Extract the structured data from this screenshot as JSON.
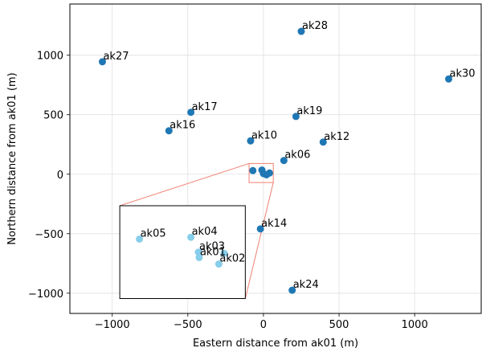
{
  "chart_data": {
    "type": "scatter",
    "xlabel": "Eastern distance from ak01 (m)",
    "ylabel": "Northern distance from ak01 (m)",
    "xlim": [
      -1280,
      1440
    ],
    "ylim": [
      -1170,
      1430
    ],
    "xticks": [
      -1000,
      -500,
      0,
      500,
      1000
    ],
    "yticks": [
      -1000,
      -500,
      0,
      500,
      1000
    ],
    "xtick_labels": [
      "−1000",
      "−500",
      "0",
      "500",
      "1000"
    ],
    "ytick_labels": [
      "−1000",
      "−500",
      "0",
      "500",
      "1000"
    ],
    "grid": true,
    "point_color": "#1f77b4",
    "points": [
      {
        "name": "ak28",
        "x": 250,
        "y": 1200
      },
      {
        "name": "ak27",
        "x": -1065,
        "y": 945
      },
      {
        "name": "ak30",
        "x": 1225,
        "y": 800
      },
      {
        "name": "ak17",
        "x": -480,
        "y": 520
      },
      {
        "name": "ak19",
        "x": 215,
        "y": 485
      },
      {
        "name": "ak16",
        "x": -625,
        "y": 365
      },
      {
        "name": "ak10",
        "x": -85,
        "y": 280
      },
      {
        "name": "ak12",
        "x": 395,
        "y": 270
      },
      {
        "name": "ak06",
        "x": 135,
        "y": 115
      },
      {
        "name": "ak14",
        "x": -20,
        "y": -460
      },
      {
        "name": "ak24",
        "x": 190,
        "y": -975
      }
    ],
    "cluster_points": [
      {
        "x": -70,
        "y": 30
      },
      {
        "x": -10,
        "y": 35
      },
      {
        "x": 0,
        "y": 5
      },
      {
        "x": 20,
        "y": -5
      },
      {
        "x": 40,
        "y": 10
      }
    ],
    "zoom_box_data": {
      "x0": -95,
      "x1": 65,
      "y0": -70,
      "y1": 90
    },
    "zoom_color": "#f08070",
    "inset": {
      "border_color": "#000000",
      "point_color": "#87ceeb",
      "points": [
        {
          "name": "ak05",
          "x": -820,
          "y": -545
        },
        {
          "name": "ak04",
          "x": -480,
          "y": -530
        },
        {
          "name": "ak03",
          "x": -430,
          "y": -655
        },
        {
          "name": "ak01",
          "x": -425,
          "y": -700
        },
        {
          "name": "ak02",
          "x": -295,
          "y": -755
        },
        {
          "name": "",
          "x": -260,
          "y": -665
        }
      ]
    }
  }
}
